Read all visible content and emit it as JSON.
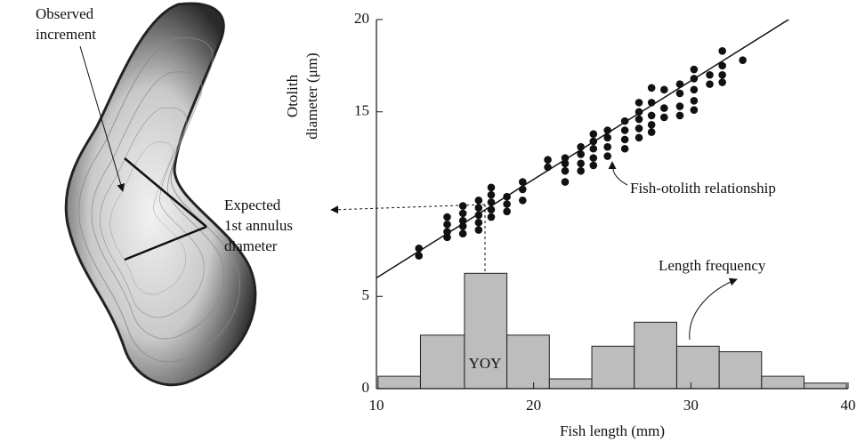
{
  "chart_data": [
    {
      "type": "scatter",
      "color": "#111111",
      "xlabel": "Fish length (mm)",
      "ylabel": [
        "Otolith",
        "diameter (μm)"
      ],
      "xlim": [
        10,
        40
      ],
      "ylim": [
        0,
        20
      ],
      "xticks": [
        10,
        20,
        30,
        40
      ],
      "yticks": [
        0,
        5,
        15,
        20
      ],
      "x": [
        12.7,
        12.7,
        14.5,
        14.5,
        14.5,
        14.5,
        15.5,
        15.5,
        15.5,
        15.5,
        15.5,
        16.5,
        16.5,
        16.5,
        16.5,
        16.5,
        17.3,
        17.3,
        17.3,
        17.3,
        17.3,
        18.3,
        18.3,
        18.3,
        19.3,
        19.3,
        19.3,
        20.9,
        20.9,
        22.0,
        22.0,
        22.0,
        22.0,
        23.0,
        23.0,
        23.0,
        23.0,
        23.8,
        23.8,
        23.8,
        23.8,
        23.8,
        24.7,
        24.7,
        24.7,
        24.7,
        25.8,
        25.8,
        25.8,
        25.8,
        26.7,
        26.7,
        26.7,
        26.7,
        26.7,
        27.5,
        27.5,
        27.5,
        27.5,
        27.5,
        28.3,
        28.3,
        28.3,
        29.3,
        29.3,
        29.3,
        29.3,
        30.2,
        30.2,
        30.2,
        30.2,
        30.2,
        31.2,
        31.2,
        32.0,
        32.0,
        32.0,
        32.0,
        33.3
      ],
      "y": [
        7.2,
        7.6,
        8.2,
        8.5,
        8.9,
        9.3,
        8.4,
        8.8,
        9.1,
        9.5,
        9.9,
        8.6,
        9.0,
        9.4,
        9.8,
        10.2,
        9.3,
        9.7,
        10.1,
        10.5,
        10.9,
        9.6,
        10.0,
        10.4,
        10.2,
        10.8,
        11.2,
        12.0,
        12.4,
        11.2,
        11.8,
        12.2,
        12.5,
        11.8,
        12.2,
        12.7,
        13.1,
        12.1,
        12.5,
        13.0,
        13.4,
        13.8,
        12.6,
        13.1,
        13.6,
        14.0,
        13.0,
        13.5,
        14.0,
        14.5,
        13.6,
        14.1,
        14.6,
        15.0,
        15.5,
        13.9,
        14.3,
        14.8,
        15.5,
        16.3,
        14.7,
        15.2,
        16.2,
        14.8,
        15.3,
        16.0,
        16.5,
        15.1,
        15.6,
        16.2,
        16.8,
        17.3,
        16.5,
        17.0,
        16.6,
        17.0,
        17.5,
        18.3,
        17.8
      ],
      "fit": {
        "x": [
          10,
          36.4
        ],
        "y": [
          6.0,
          20.1
        ]
      },
      "annotations": [
        [
          "Observed",
          "increment"
        ],
        [
          "Expected",
          "1st annulus",
          "diameter"
        ],
        [
          "Fish-otolith relationship"
        ],
        [
          "Length frequency"
        ],
        [
          "YOY"
        ]
      ]
    },
    {
      "type": "histogram",
      "color": "#bdbdbd",
      "xlim": [
        10,
        40
      ],
      "ylim": [
        0,
        20
      ],
      "bins": [
        10.1,
        12.8,
        15.6,
        18.3,
        21.0,
        23.7,
        26.4,
        29.1,
        31.8,
        34.5,
        37.2,
        39.9
      ],
      "counts": [
        0.67,
        2.9,
        6.25,
        2.9,
        0.53,
        2.3,
        3.6,
        2.3,
        2.0,
        0.67,
        0.3
      ]
    }
  ]
}
